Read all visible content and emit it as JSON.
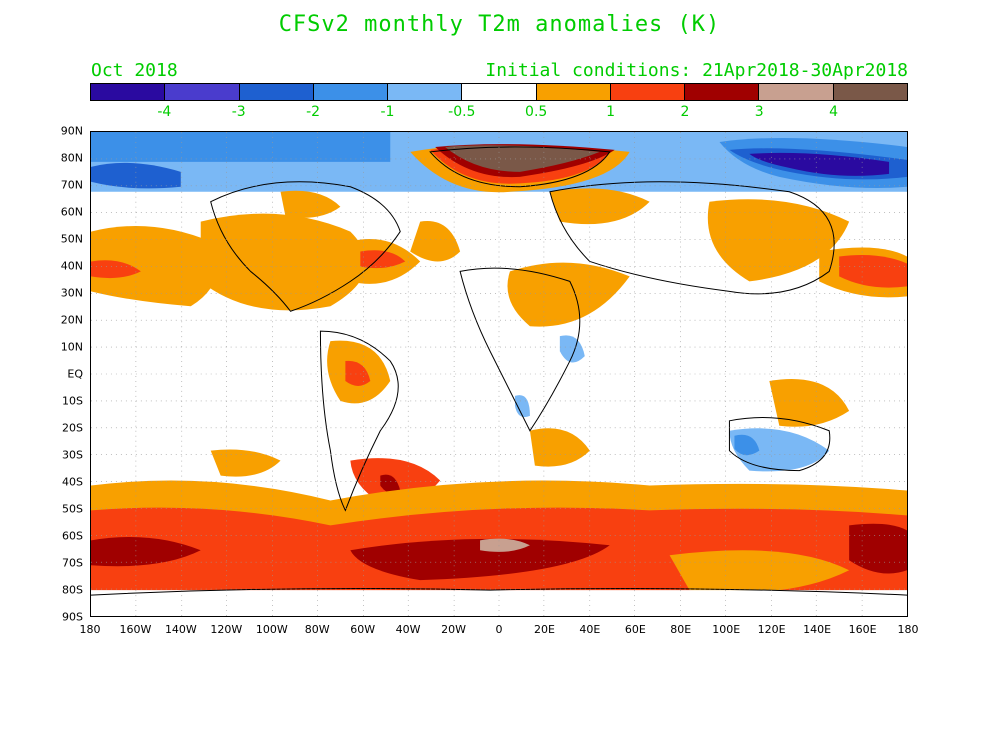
{
  "header": {
    "title": "CFSv2 monthly T2m anomalies (K)",
    "month": "Oct 2018",
    "init": "Initial conditions: 21Apr2018-30Apr2018"
  },
  "colorbar": {
    "colors": [
      "#2a0aa0",
      "#4a3ccd",
      "#1e60d0",
      "#3c90e8",
      "#7ab8f5",
      "#ffffff",
      "#f8a000",
      "#f84010",
      "#a00000",
      "#c8a090",
      "#7a5848"
    ],
    "labels": [
      "-4",
      "-3",
      "-2",
      "-1",
      "-0.5",
      "0.5",
      "1",
      "2",
      "3",
      "4"
    ]
  },
  "axes": {
    "lat_labels": [
      "90N",
      "80N",
      "70N",
      "60N",
      "50N",
      "40N",
      "30N",
      "20N",
      "10N",
      "EQ",
      "10S",
      "20S",
      "30S",
      "40S",
      "50S",
      "60S",
      "70S",
      "80S",
      "90S"
    ],
    "lon_labels": [
      "180",
      "160W",
      "140W",
      "120W",
      "100W",
      "80W",
      "60W",
      "40W",
      "20W",
      "0",
      "20E",
      "40E",
      "60E",
      "80E",
      "100E",
      "120E",
      "140E",
      "160E",
      "180"
    ]
  }
}
